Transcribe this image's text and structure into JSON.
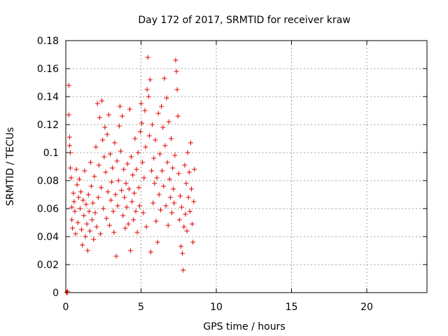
{
  "chart_data": {
    "type": "scatter",
    "title": "Day 172 of 2017, SRMTID for receiver kraw",
    "xlabel": "GPS time / hours",
    "ylabel": "SRMTID / TECUs",
    "xlim": [
      0,
      24
    ],
    "ylim": [
      0,
      0.18
    ],
    "x_ticks": [
      0,
      5,
      10,
      15,
      20
    ],
    "x_tick_labels": [
      "0",
      "5",
      "10",
      "15",
      "20"
    ],
    "y_ticks": [
      0,
      0.02,
      0.04,
      0.06,
      0.08,
      0.1,
      0.12,
      0.14,
      0.16,
      0.18
    ],
    "y_tick_labels": [
      "0",
      "0.02",
      "0.04",
      "0.06",
      "0.08",
      "0.1",
      "0.12",
      "0.14",
      "0.16",
      "0.18"
    ],
    "grid": true,
    "marker": "+",
    "series": [
      {
        "name": "SRMTID",
        "color": "#e00000",
        "points": [
          [
            0.05,
            0.0
          ],
          [
            0.1,
            0.0
          ],
          [
            0.12,
            0.001
          ],
          [
            0.2,
            0.148
          ],
          [
            0.2,
            0.127
          ],
          [
            0.25,
            0.111
          ],
          [
            0.25,
            0.105
          ],
          [
            0.3,
            0.1
          ],
          [
            0.3,
            0.089
          ],
          [
            0.35,
            0.082
          ],
          [
            0.4,
            0.061
          ],
          [
            0.4,
            0.052
          ],
          [
            0.45,
            0.046
          ],
          [
            0.5,
            0.071
          ],
          [
            0.55,
            0.065
          ],
          [
            0.6,
            0.058
          ],
          [
            0.65,
            0.042
          ],
          [
            0.7,
            0.088
          ],
          [
            0.75,
            0.077
          ],
          [
            0.8,
            0.05
          ],
          [
            0.85,
            0.068
          ],
          [
            0.9,
            0.081
          ],
          [
            0.95,
            0.06
          ],
          [
            1.0,
            0.072
          ],
          [
            1.05,
            0.045
          ],
          [
            1.1,
            0.034
          ],
          [
            1.15,
            0.066
          ],
          [
            1.2,
            0.055
          ],
          [
            1.25,
            0.087
          ],
          [
            1.3,
            0.04
          ],
          [
            1.35,
            0.063
          ],
          [
            1.4,
            0.049
          ],
          [
            1.45,
            0.03
          ],
          [
            1.5,
            0.07
          ],
          [
            1.55,
            0.058
          ],
          [
            1.6,
            0.044
          ],
          [
            1.65,
            0.093
          ],
          [
            1.7,
            0.076
          ],
          [
            1.75,
            0.052
          ],
          [
            1.8,
            0.064
          ],
          [
            1.85,
            0.038
          ],
          [
            1.9,
            0.083
          ],
          [
            1.95,
            0.057
          ],
          [
            2.0,
            0.104
          ],
          [
            2.05,
            0.047
          ],
          [
            2.1,
            0.135
          ],
          [
            2.15,
            0.068
          ],
          [
            2.2,
            0.091
          ],
          [
            2.25,
            0.125
          ],
          [
            2.3,
            0.042
          ],
          [
            2.35,
            0.075
          ],
          [
            2.4,
            0.137
          ],
          [
            2.45,
            0.109
          ],
          [
            2.5,
            0.06
          ],
          [
            2.55,
            0.097
          ],
          [
            2.6,
            0.118
          ],
          [
            2.65,
            0.086
          ],
          [
            2.7,
            0.053
          ],
          [
            2.75,
            0.113
          ],
          [
            2.8,
            0.072
          ],
          [
            2.85,
            0.127
          ],
          [
            2.9,
            0.048
          ],
          [
            2.95,
            0.099
          ],
          [
            3.0,
            0.066
          ],
          [
            3.05,
            0.079
          ],
          [
            3.1,
            0.089
          ],
          [
            3.15,
            0.058
          ],
          [
            3.2,
            0.043
          ],
          [
            3.25,
            0.107
          ],
          [
            3.3,
            0.07
          ],
          [
            3.35,
            0.026
          ],
          [
            3.4,
            0.094
          ],
          [
            3.45,
            0.062
          ],
          [
            3.5,
            0.08
          ],
          [
            3.55,
            0.119
          ],
          [
            3.6,
            0.133
          ],
          [
            3.65,
            0.101
          ],
          [
            3.7,
            0.073
          ],
          [
            3.75,
            0.126
          ],
          [
            3.8,
            0.055
          ],
          [
            3.85,
            0.088
          ],
          [
            3.9,
            0.068
          ],
          [
            3.95,
            0.046
          ],
          [
            4.0,
            0.078
          ],
          [
            4.05,
            0.061
          ],
          [
            4.1,
            0.092
          ],
          [
            4.15,
            0.049
          ],
          [
            4.2,
            0.074
          ],
          [
            4.25,
            0.131
          ],
          [
            4.3,
            0.03
          ],
          [
            4.35,
            0.097
          ],
          [
            4.4,
            0.065
          ],
          [
            4.45,
            0.084
          ],
          [
            4.5,
            0.052
          ],
          [
            4.55,
            0.071
          ],
          [
            4.6,
            0.11
          ],
          [
            4.65,
            0.058
          ],
          [
            4.7,
            0.088
          ],
          [
            4.75,
            0.043
          ],
          [
            4.8,
            0.1
          ],
          [
            4.85,
            0.075
          ],
          [
            4.9,
            0.062
          ],
          [
            4.95,
            0.115
          ],
          [
            5.0,
            0.135
          ],
          [
            5.05,
            0.121
          ],
          [
            5.1,
            0.093
          ],
          [
            5.15,
            0.057
          ],
          [
            5.2,
            0.082
          ],
          [
            5.25,
            0.13
          ],
          [
            5.3,
            0.104
          ],
          [
            5.35,
            0.047
          ],
          [
            5.4,
            0.145
          ],
          [
            5.45,
            0.168
          ],
          [
            5.5,
            0.14
          ],
          [
            5.55,
            0.112
          ],
          [
            5.6,
            0.152
          ],
          [
            5.65,
            0.029
          ],
          [
            5.7,
            0.087
          ],
          [
            5.75,
            0.12
          ],
          [
            5.8,
            0.064
          ],
          [
            5.85,
            0.096
          ],
          [
            5.9,
            0.078
          ],
          [
            5.95,
            0.109
          ],
          [
            6.0,
            0.051
          ],
          [
            6.05,
            0.082
          ],
          [
            6.1,
            0.036
          ],
          [
            6.15,
            0.128
          ],
          [
            6.2,
            0.07
          ],
          [
            6.25,
            0.099
          ],
          [
            6.3,
            0.059
          ],
          [
            6.35,
            0.133
          ],
          [
            6.4,
            0.087
          ],
          [
            6.45,
            0.118
          ],
          [
            6.5,
            0.076
          ],
          [
            6.55,
            0.153
          ],
          [
            6.6,
            0.105
          ],
          [
            6.65,
            0.062
          ],
          [
            6.7,
            0.139
          ],
          [
            6.75,
            0.093
          ],
          [
            6.8,
            0.048
          ],
          [
            6.85,
            0.122
          ],
          [
            6.9,
            0.081
          ],
          [
            6.95,
            0.068
          ],
          [
            7.0,
            0.11
          ],
          [
            7.05,
            0.057
          ],
          [
            7.1,
            0.089
          ],
          [
            7.15,
            0.074
          ],
          [
            7.2,
            0.064
          ],
          [
            7.25,
            0.098
          ],
          [
            7.3,
            0.166
          ],
          [
            7.35,
            0.158
          ],
          [
            7.4,
            0.145
          ],
          [
            7.45,
            0.126
          ],
          [
            7.5,
            0.085
          ],
          [
            7.55,
            0.052
          ],
          [
            7.6,
            0.069
          ],
          [
            7.65,
            0.033
          ],
          [
            7.7,
            0.061
          ],
          [
            7.75,
            0.028
          ],
          [
            7.8,
            0.016
          ],
          [
            7.85,
            0.047
          ],
          [
            7.9,
            0.091
          ],
          [
            7.95,
            0.056
          ],
          [
            8.0,
            0.078
          ],
          [
            8.05,
            0.044
          ],
          [
            8.1,
            0.1
          ],
          [
            8.15,
            0.068
          ],
          [
            8.2,
            0.086
          ],
          [
            8.25,
            0.058
          ],
          [
            8.3,
            0.107
          ],
          [
            8.35,
            0.074
          ],
          [
            8.4,
            0.049
          ],
          [
            8.45,
            0.036
          ],
          [
            8.5,
            0.065
          ],
          [
            8.55,
            0.088
          ]
        ]
      }
    ]
  }
}
